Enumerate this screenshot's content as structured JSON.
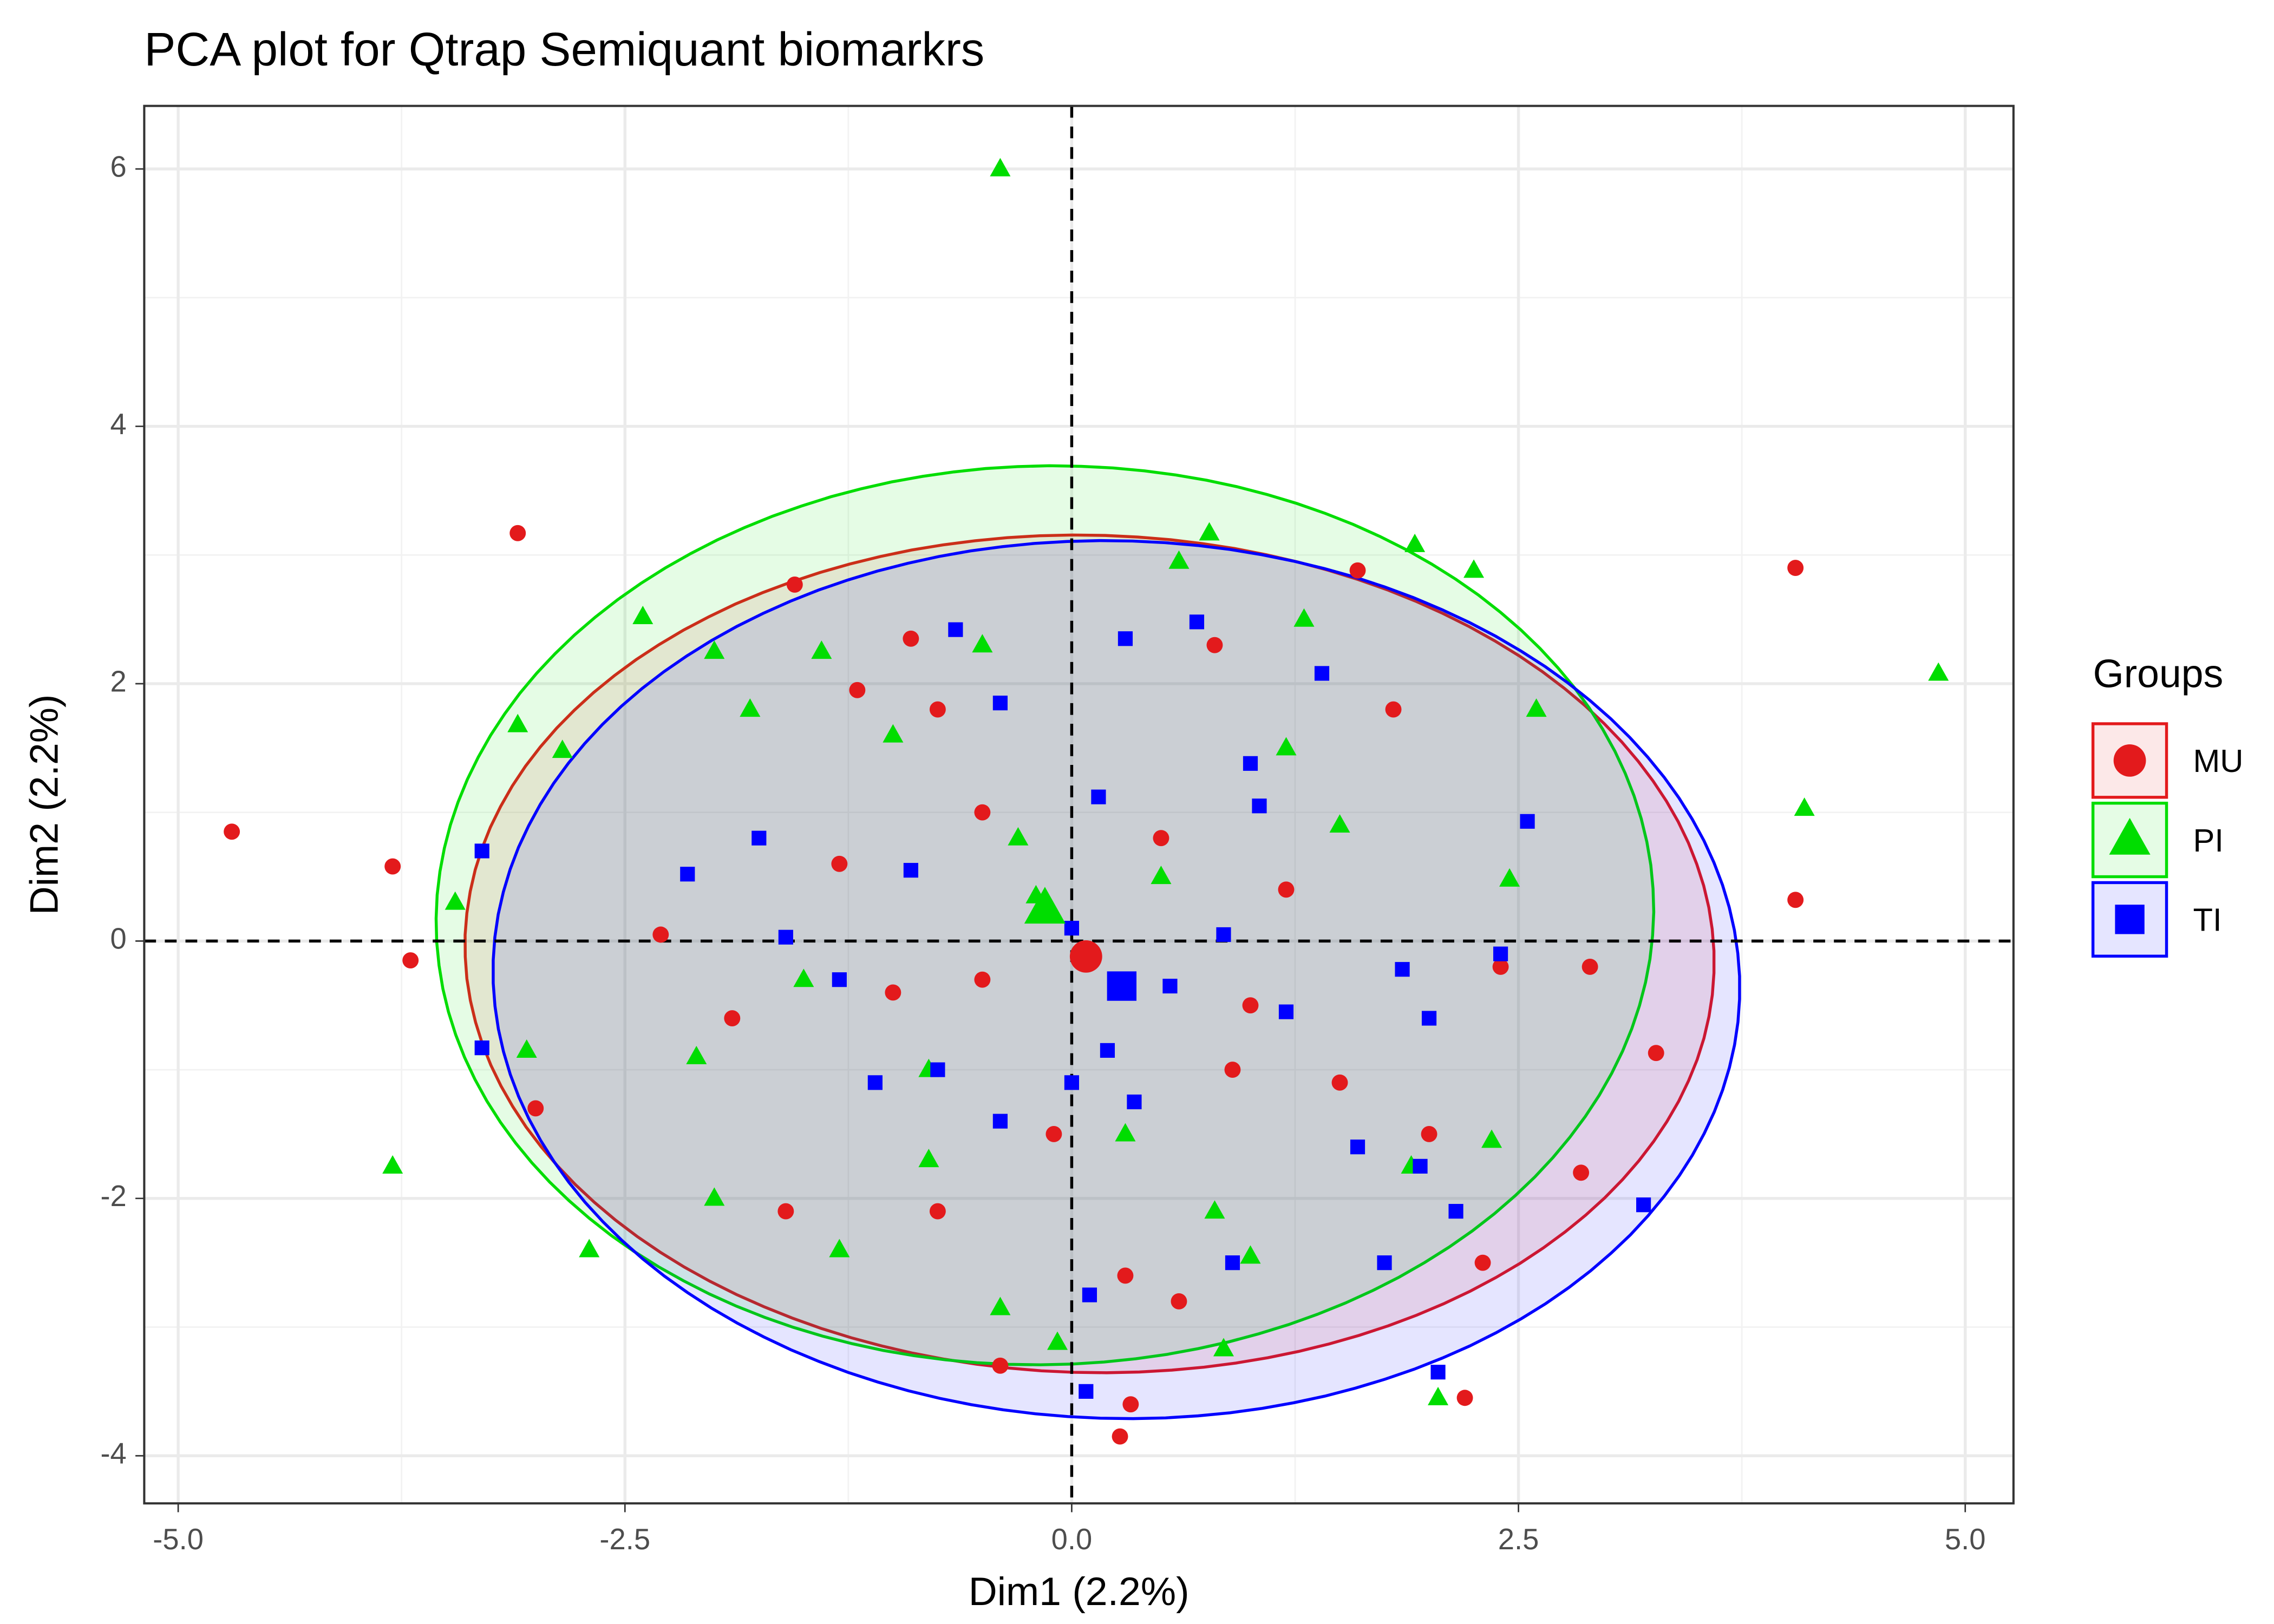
{
  "chart_data": {
    "type": "scatter",
    "title": "PCA plot for Qtrap Semiquant biomarkrs",
    "x_label": "Dim1 (2.2%)",
    "y_label": "Dim2 (2.2%)",
    "xlim": [
      -5.19,
      5.27
    ],
    "ylim": [
      -4.37,
      6.49
    ],
    "xticks": [
      {
        "value": -5,
        "label": "-5.0"
      },
      {
        "value": -2.5,
        "label": "-2.5"
      },
      {
        "value": 0,
        "label": "0.0"
      },
      {
        "value": 2.5,
        "label": "2.5"
      },
      {
        "value": 5,
        "label": "5.0"
      }
    ],
    "yticks": [
      -4,
      -2,
      0,
      2,
      4,
      6
    ],
    "grid": true,
    "reference_lines": {
      "x": 0,
      "y": 0
    },
    "legend_title": "Groups",
    "legend_position": "right",
    "series": [
      {
        "name": "MU",
        "color": "#e31a1c",
        "marker": "circle",
        "x": [
          -4.7,
          -3.8,
          -3.7,
          -3.1,
          -3.0,
          -1.55,
          4.05,
          4.05,
          3.27,
          2.85,
          2.3,
          2.2,
          0.27,
          0.33,
          1.6,
          -0.9,
          -1.2,
          -0.75,
          -0.5,
          -1.9,
          -1.0,
          -0.5,
          0.5,
          1.0,
          1.5,
          2.0,
          -0.75,
          -1.6,
          0.6,
          1.2,
          1.8,
          2.4,
          -2.3,
          -0.4,
          0.8,
          -0.1,
          0.9,
          -1.3,
          2.9,
          0.3
        ],
        "values": [
          0.85,
          0.58,
          -0.15,
          3.17,
          -1.3,
          2.77,
          2.9,
          0.32,
          -0.87,
          -1.8,
          -2.5,
          -3.55,
          -3.85,
          -3.6,
          2.88,
          2.35,
          1.95,
          1.8,
          1.0,
          -0.6,
          -0.4,
          -0.3,
          0.8,
          -0.5,
          -1.1,
          -1.5,
          -2.1,
          -2.1,
          -2.8,
          0.4,
          1.8,
          -0.2,
          0.05,
          -3.3,
          2.3,
          -1.5,
          -1.0,
          0.6,
          -0.2,
          -2.6
        ],
        "centroid": [
          0.08,
          -0.12
        ],
        "ellipse": {
          "center": [
            0.1,
            -0.1
          ],
          "radii": [
            3.5,
            3.25
          ],
          "angle": -8
        }
      },
      {
        "name": "PI",
        "color": "#00dd00",
        "marker": "triangle",
        "x": [
          -0.4,
          4.85,
          4.1,
          -3.8,
          -2.7,
          -2.4,
          -3.1,
          -3.45,
          -3.05,
          -2.85,
          0.77,
          1.92,
          2.25,
          -0.4,
          0.85,
          -0.08,
          2.05,
          -1.3,
          -2.0,
          2.6,
          0.6,
          -0.5,
          -1.4,
          -2.0,
          1.3,
          -1.8,
          -1.0,
          -0.3,
          0.5,
          1.5,
          -0.2,
          -1.5,
          -2.1,
          -0.8,
          0.3,
          1.0,
          2.35,
          1.9,
          2.45,
          0.8,
          -0.8,
          1.2
        ],
        "values": [
          6.0,
          2.08,
          1.03,
          -1.75,
          -2.4,
          2.52,
          1.68,
          0.3,
          -0.85,
          1.48,
          3.17,
          3.08,
          2.88,
          -2.85,
          -3.17,
          -3.12,
          -3.55,
          -2.4,
          -2.0,
          1.8,
          2.95,
          2.3,
          2.25,
          2.25,
          2.5,
          1.8,
          1.6,
          0.8,
          0.5,
          0.9,
          0.35,
          -0.3,
          -0.9,
          -1.0,
          -1.5,
          -2.45,
          -1.55,
          -1.75,
          0.48,
          -2.1,
          -1.7,
          1.5
        ],
        "centroid": [
          -0.15,
          0.25
        ],
        "ellipse": {
          "center": [
            -0.15,
            0.2
          ],
          "radii": [
            3.4,
            3.5
          ],
          "angle": -15
        }
      },
      {
        "name": "TI",
        "color": "#0000ff",
        "marker": "square",
        "x": [
          -3.3,
          -3.3,
          -0.65,
          0.3,
          0.7,
          1.4,
          3.2,
          2.05,
          0.08,
          0.1,
          1.75,
          2.15,
          2.55,
          -2.15,
          -1.75,
          -0.4,
          1.0,
          -1.6,
          -1.3,
          -0.75,
          -0.4,
          0.0,
          0.9,
          1.6,
          2.0,
          2.4,
          1.2,
          0.2,
          -1.1,
          0.15,
          1.05,
          1.95,
          0.35,
          0.85,
          1.85,
          -0.9,
          0.0,
          0.55
        ],
        "values": [
          0.7,
          -0.83,
          2.42,
          2.35,
          2.48,
          2.08,
          -2.05,
          -3.35,
          -3.5,
          -2.75,
          -2.5,
          -2.1,
          0.93,
          0.52,
          0.8,
          1.85,
          1.38,
          0.03,
          -0.3,
          -1.0,
          -1.4,
          -1.1,
          -2.5,
          -1.6,
          -0.6,
          -0.1,
          -0.55,
          -0.85,
          -1.1,
          1.12,
          1.05,
          -1.75,
          -1.25,
          0.05,
          -0.22,
          0.55,
          0.1,
          -0.35
        ],
        "centroid": [
          0.28,
          -0.35
        ],
        "ellipse": {
          "center": [
            0.25,
            -0.3
          ],
          "radii": [
            3.5,
            3.4
          ],
          "angle": -20
        }
      }
    ]
  }
}
